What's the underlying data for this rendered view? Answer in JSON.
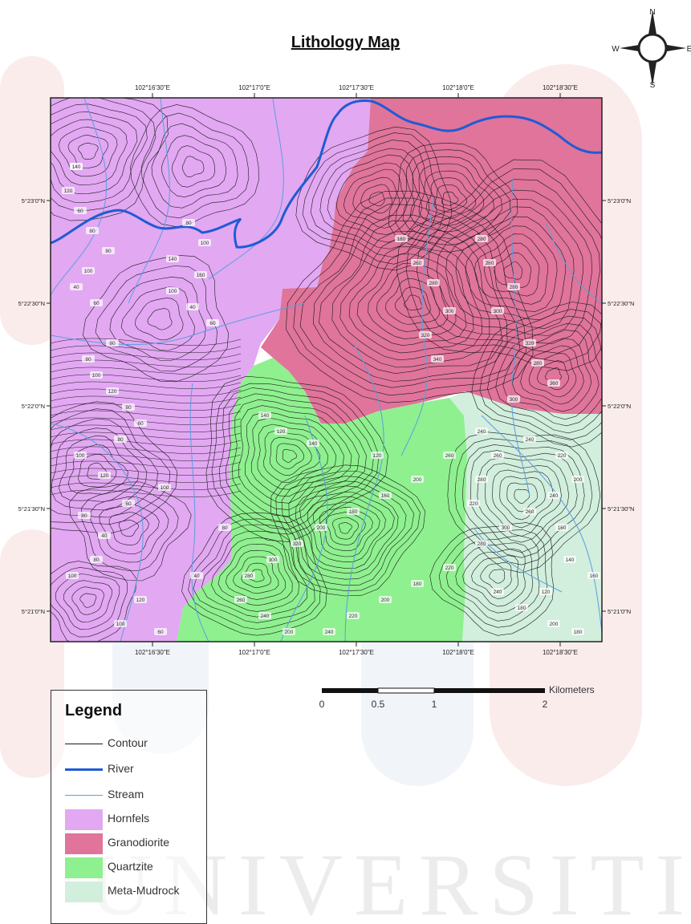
{
  "title": "Lithology Map",
  "north_arrow": {
    "n": "N",
    "s": "S",
    "e": "E",
    "w": "W"
  },
  "map": {
    "x_ticks": [
      "102°16'30\"E",
      "102°17'0\"E",
      "102°17'30\"E",
      "102°18'0\"E",
      "102°18'30\"E"
    ],
    "y_ticks": [
      "5°23'0\"N",
      "5°22'30\"N",
      "5°22'0\"N",
      "5°21'30\"N",
      "5°21'0\"N"
    ],
    "contour_labels": [
      "100",
      "120",
      "60",
      "80",
      "80",
      "100",
      "40",
      "60",
      "80",
      "100",
      "140",
      "160",
      "100",
      "40",
      "60",
      "80",
      "80",
      "100",
      "120",
      "80",
      "60",
      "80",
      "100",
      "120",
      "100",
      "60",
      "80",
      "40",
      "80",
      "100",
      "120",
      "100",
      "60",
      "40",
      "80",
      "140",
      "120",
      "140",
      "120",
      "180",
      "260",
      "280",
      "300",
      "320",
      "340",
      "280",
      "260",
      "280",
      "300",
      "320",
      "280",
      "360",
      "300",
      "240",
      "260",
      "200",
      "160",
      "180",
      "200",
      "320",
      "300",
      "280",
      "260",
      "240",
      "200",
      "240",
      "220",
      "200",
      "180",
      "220",
      "280",
      "300",
      "260",
      "240",
      "200",
      "220",
      "240",
      "260",
      "280",
      "220",
      "240",
      "180",
      "200",
      "180",
      "160",
      "140",
      "120",
      "160",
      "140"
    ]
  },
  "scalebar": {
    "unit": "Kilometers",
    "labels": [
      "0",
      "0.5",
      "1",
      "2"
    ]
  },
  "legend": {
    "title": "Legend",
    "items": [
      {
        "label": "Contour",
        "kind": "line",
        "color": "#1a1a1a",
        "width": 1
      },
      {
        "label": "River",
        "kind": "line",
        "color": "#1f5bd6",
        "width": 3
      },
      {
        "label": "Stream",
        "kind": "line",
        "color": "#5b9fe0",
        "width": 1
      },
      {
        "label": "Hornfels",
        "kind": "fill",
        "color": "#e2a8f2"
      },
      {
        "label": "Granodiorite",
        "kind": "fill",
        "color": "#e0749a"
      },
      {
        "label": "Quartzite",
        "kind": "fill",
        "color": "#8ff08f"
      },
      {
        "label": "Meta-Mudrock",
        "kind": "fill",
        "color": "#d2eedd"
      }
    ]
  },
  "colors": {
    "hornfels": "#e2a8f2",
    "granodiorite": "#e0749a",
    "quartzite": "#8ff08f",
    "meta_mudrock": "#d2eedd",
    "river": "#1f5bd6",
    "stream": "#5b9fe0",
    "contour": "#1a1a1a"
  }
}
